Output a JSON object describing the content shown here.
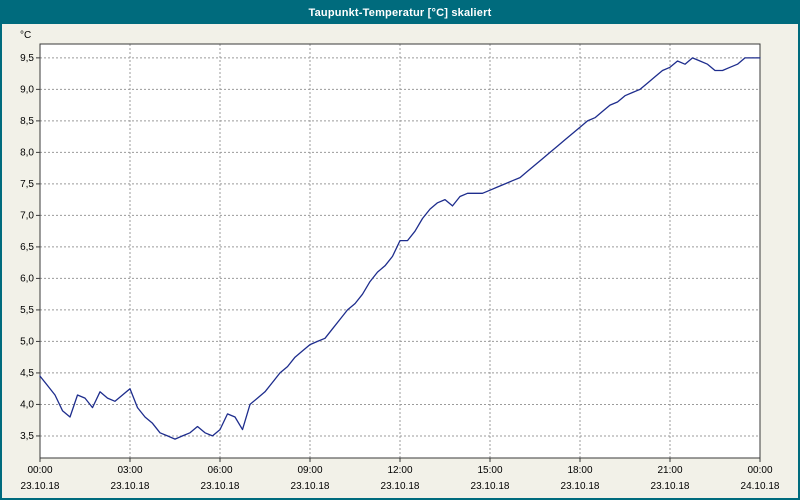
{
  "window": {
    "title": "Taupunkt-Temperatur [°C] skaliert"
  },
  "colors": {
    "titlebar": "#006b7d",
    "frame": "#006b7d",
    "page_bg": "#f2f1e8",
    "plot_bg": "#ffffff",
    "grid": "#9b9b9b",
    "axis": "#3a3a3a",
    "line": "#1e2d8d",
    "text": "#000000"
  },
  "chart_data": {
    "type": "line",
    "title": "Taupunkt-Temperatur [°C] skaliert",
    "ylabel": "°C",
    "xlabel": "",
    "legend": null,
    "grid": "dashed",
    "ylim": [
      3.15,
      9.72
    ],
    "xlim": [
      0,
      24
    ],
    "yticks": [
      3.5,
      4.0,
      4.5,
      5.0,
      5.5,
      6.0,
      6.5,
      7.0,
      7.5,
      8.0,
      8.5,
      9.0,
      9.5
    ],
    "ytick_labels": [
      "3,5",
      "4,0",
      "4,5",
      "5,0",
      "5,5",
      "6,0",
      "6,5",
      "7,0",
      "7,5",
      "8,0",
      "8,5",
      "9,0",
      "9,5"
    ],
    "xticks": [
      {
        "hour": 0,
        "time": "00:00",
        "date": "23.10.18"
      },
      {
        "hour": 3,
        "time": "03:00",
        "date": "23.10.18"
      },
      {
        "hour": 6,
        "time": "06:00",
        "date": "23.10.18"
      },
      {
        "hour": 9,
        "time": "09:00",
        "date": "23.10.18"
      },
      {
        "hour": 12,
        "time": "12:00",
        "date": "23.10.18"
      },
      {
        "hour": 15,
        "time": "15:00",
        "date": "23.10.18"
      },
      {
        "hour": 18,
        "time": "18:00",
        "date": "23.10.18"
      },
      {
        "hour": 21,
        "time": "21:00",
        "date": "23.10.18"
      },
      {
        "hour": 24,
        "time": "00:00",
        "date": "24.10.18"
      }
    ],
    "series_name": "Taupunkt-Temperatur",
    "x_hours": [
      0,
      0.25,
      0.5,
      0.75,
      1,
      1.25,
      1.5,
      1.75,
      2,
      2.25,
      2.5,
      2.75,
      3,
      3.25,
      3.5,
      3.75,
      4,
      4.25,
      4.5,
      4.75,
      5,
      5.25,
      5.5,
      5.75,
      6,
      6.25,
      6.5,
      6.75,
      7,
      7.25,
      7.5,
      7.75,
      8,
      8.25,
      8.5,
      8.75,
      9,
      9.25,
      9.5,
      9.75,
      10,
      10.25,
      10.5,
      10.75,
      11,
      11.25,
      11.5,
      11.75,
      12,
      12.25,
      12.5,
      12.75,
      13,
      13.25,
      13.5,
      13.75,
      14,
      14.25,
      14.5,
      14.75,
      15,
      15.25,
      15.5,
      15.75,
      16,
      16.25,
      16.5,
      16.75,
      17,
      17.25,
      17.5,
      17.75,
      18,
      18.25,
      18.5,
      18.75,
      19,
      19.25,
      19.5,
      19.75,
      20,
      20.25,
      20.5,
      20.75,
      21,
      21.25,
      21.5,
      21.75,
      22,
      22.25,
      22.5,
      22.75,
      23,
      23.25,
      23.5,
      23.75,
      24
    ],
    "values": [
      4.45,
      4.3,
      4.15,
      3.9,
      3.8,
      4.15,
      4.1,
      3.95,
      4.2,
      4.1,
      4.05,
      4.15,
      4.25,
      3.95,
      3.8,
      3.7,
      3.55,
      3.5,
      3.45,
      3.5,
      3.55,
      3.65,
      3.55,
      3.5,
      3.6,
      3.85,
      3.8,
      3.6,
      4.0,
      4.1,
      4.2,
      4.35,
      4.5,
      4.6,
      4.75,
      4.85,
      4.95,
      5.0,
      5.05,
      5.2,
      5.35,
      5.5,
      5.6,
      5.75,
      5.95,
      6.1,
      6.2,
      6.35,
      6.6,
      6.6,
      6.75,
      6.95,
      7.1,
      7.2,
      7.25,
      7.15,
      7.3,
      7.35,
      7.35,
      7.35,
      7.4,
      7.45,
      7.5,
      7.55,
      7.6,
      7.7,
      7.8,
      7.9,
      8.0,
      8.1,
      8.2,
      8.3,
      8.4,
      8.5,
      8.55,
      8.65,
      8.75,
      8.8,
      8.9,
      8.95,
      9.0,
      9.1,
      9.2,
      9.3,
      9.35,
      9.45,
      9.4,
      9.5,
      9.45,
      9.4,
      9.3,
      9.3,
      9.35,
      9.4,
      9.5,
      9.5,
      9.5
    ]
  }
}
